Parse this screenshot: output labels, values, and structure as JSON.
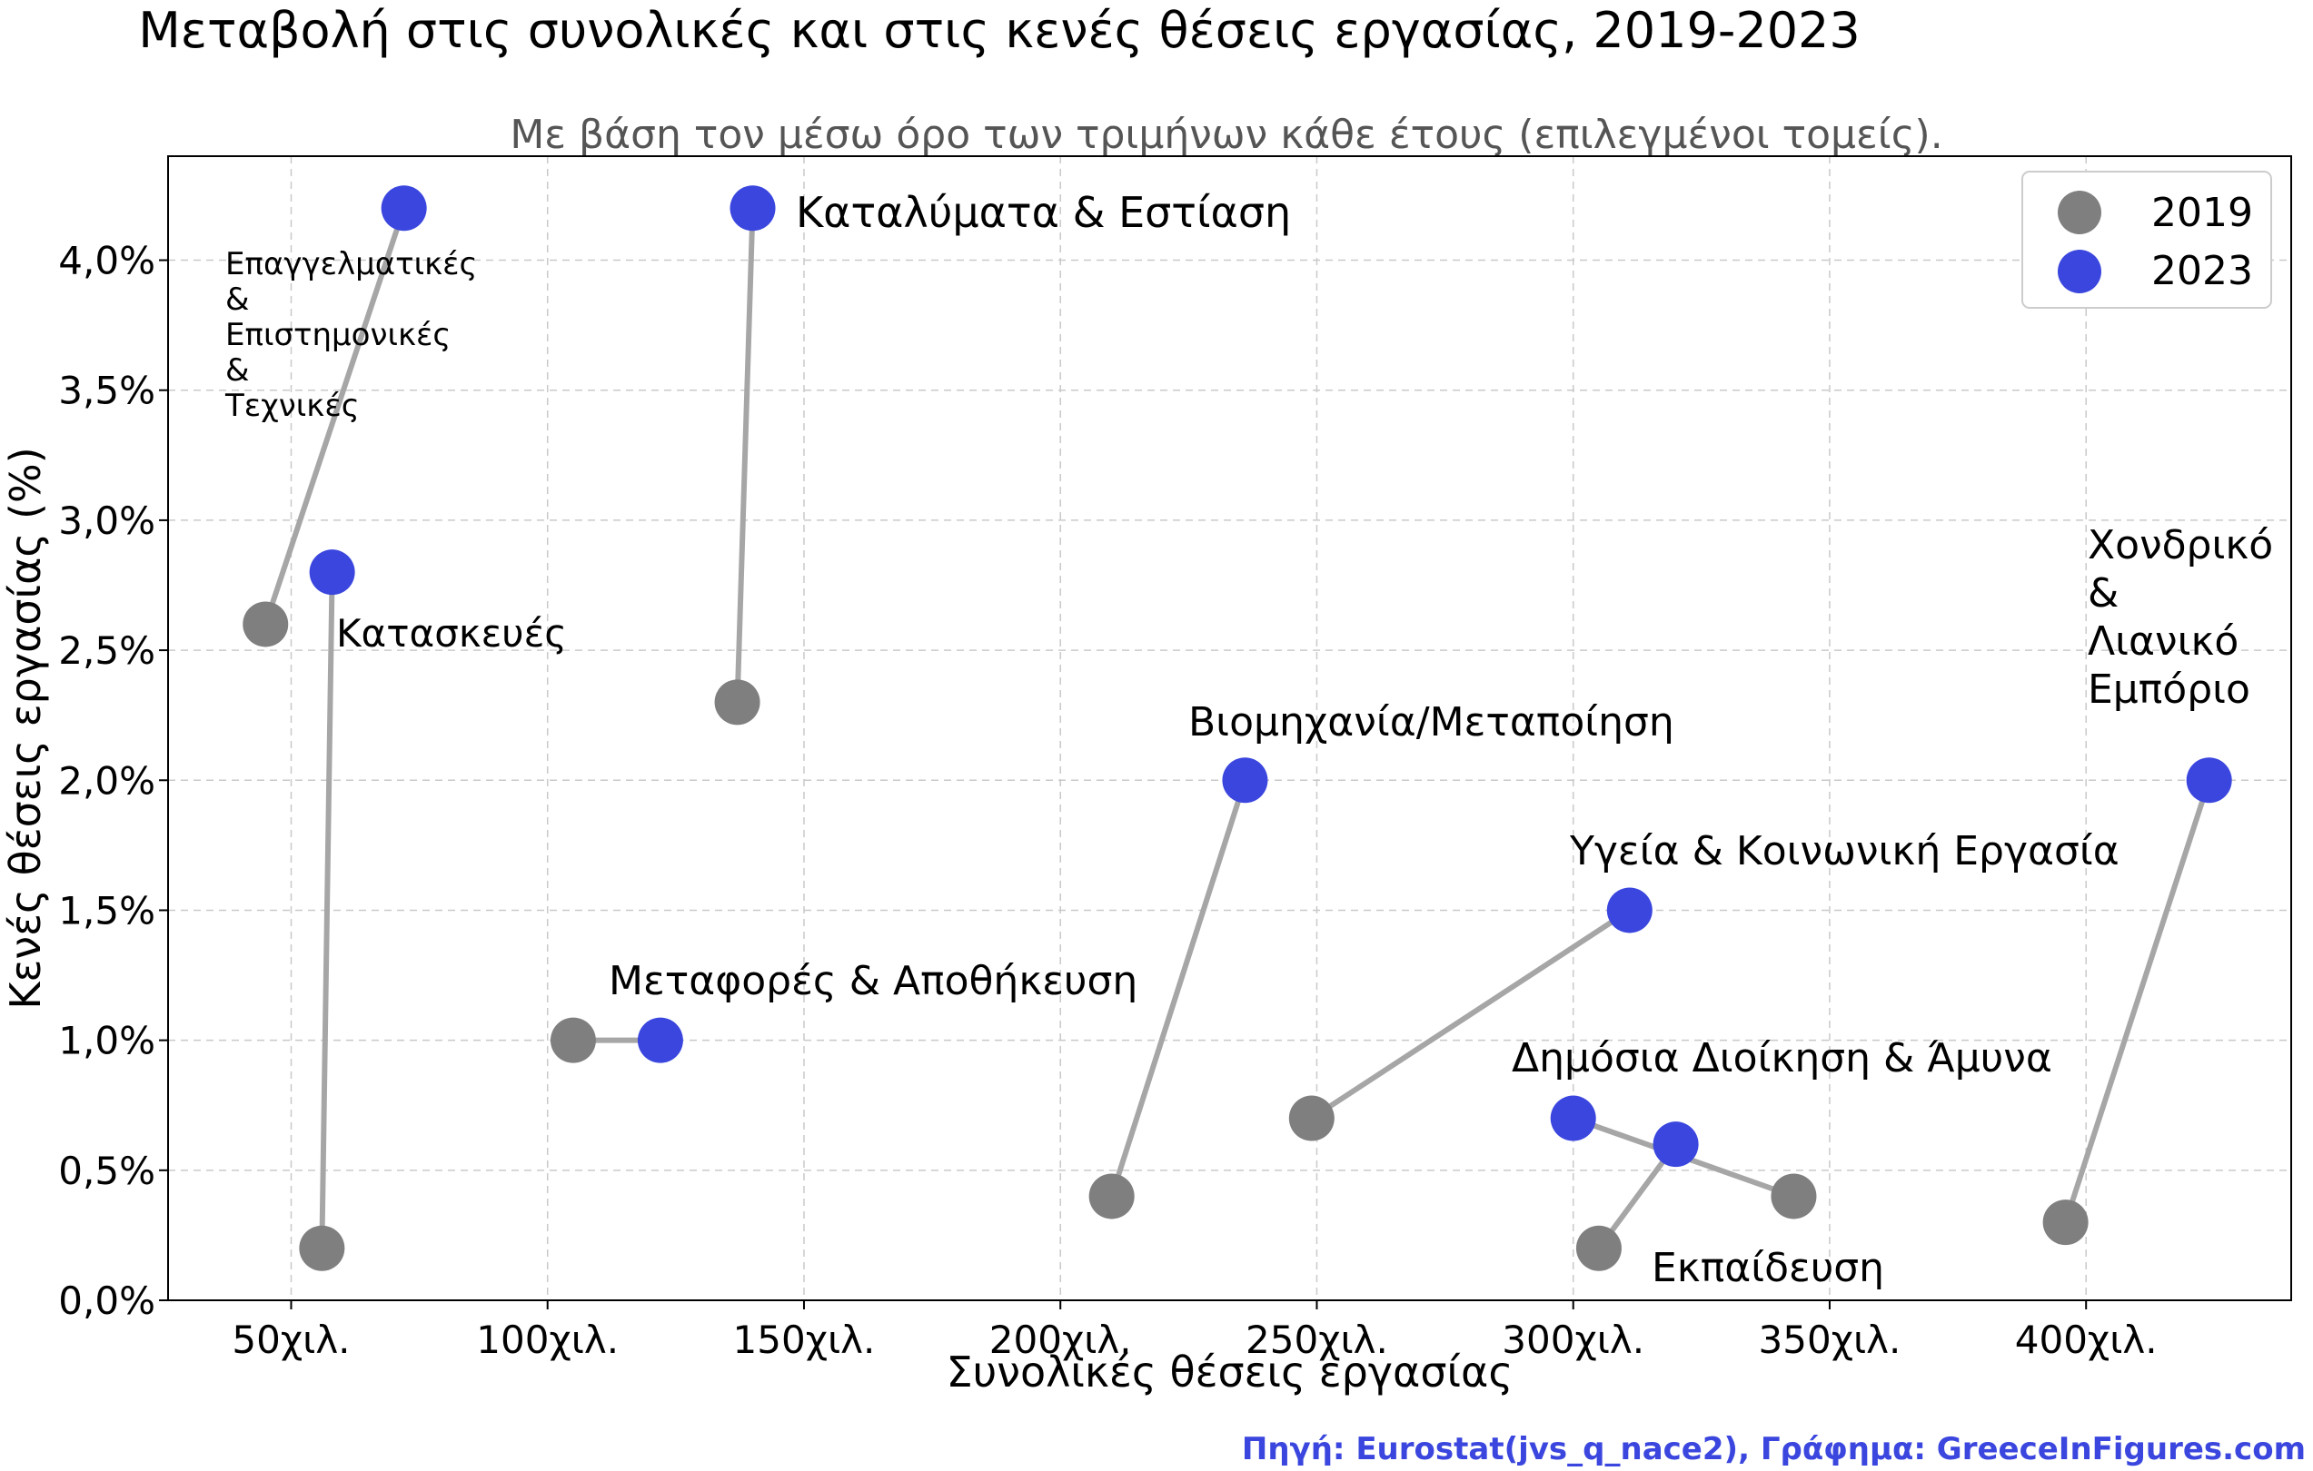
{
  "chart_data": {
    "type": "scatter",
    "title": "Μεταβολή στις συνολικές και στις κενές θέσεις εργασίας, 2019-2023",
    "subtitle": "Με βάση τον μέσω όρο των τριμήνων κάθε έτους (επιλεγμένοι τομείς).",
    "xlabel": "Συνολικές θέσεις εργασίας",
    "ylabel": "Κενές θέσεις εργασίας (%)",
    "xlim": [
      26,
      440
    ],
    "ylim": [
      0,
      4.4
    ],
    "xticks": [
      {
        "value": 50,
        "label": "50χιλ."
      },
      {
        "value": 100,
        "label": "100χιλ."
      },
      {
        "value": 150,
        "label": "150χιλ."
      },
      {
        "value": 200,
        "label": "200χιλ."
      },
      {
        "value": 250,
        "label": "250χιλ."
      },
      {
        "value": 300,
        "label": "300χιλ."
      },
      {
        "value": 350,
        "label": "350χιλ."
      },
      {
        "value": 400,
        "label": "400χιλ."
      }
    ],
    "yticks": [
      {
        "value": 0.0,
        "label": "0,0%"
      },
      {
        "value": 0.5,
        "label": "0,5%"
      },
      {
        "value": 1.0,
        "label": "1,0%"
      },
      {
        "value": 1.5,
        "label": "1,5%"
      },
      {
        "value": 2.0,
        "label": "2,0%"
      },
      {
        "value": 2.5,
        "label": "2,5%"
      },
      {
        "value": 3.0,
        "label": "3,0%"
      },
      {
        "value": 3.5,
        "label": "3,5%"
      },
      {
        "value": 4.0,
        "label": "4,0%"
      }
    ],
    "grid": true,
    "legend_position": "top-right",
    "legend": [
      {
        "label": "2019",
        "color": "#7f7f7f"
      },
      {
        "label": "2023",
        "color": "#3a46de"
      }
    ],
    "arrow_color": "#a6a6a6",
    "sectors": [
      {
        "name": "Επαγγελματικές & Επιστημονικές & Τεχνικές",
        "label_lines": [
          "Επαγγελματικές",
          "&",
          "Επιστημονικές",
          "&",
          "Τεχνικές"
        ],
        "x2019": 45,
        "y2019": 2.6,
        "x2023": 72,
        "y2023": 4.2
      },
      {
        "name": "Κατασκευές",
        "label_lines": [
          "Κατασκευές"
        ],
        "x2019": 56,
        "y2019": 0.2,
        "x2023": 58,
        "y2023": 2.8
      },
      {
        "name": "Καταλύματα & Εστίαση",
        "label_lines": [
          "Καταλύματα & Εστίαση"
        ],
        "x2019": 137,
        "y2019": 2.3,
        "x2023": 140,
        "y2023": 4.2
      },
      {
        "name": "Μεταφορές & Αποθήκευση",
        "label_lines": [
          "Μεταφορές & Αποθήκευση"
        ],
        "x2019": 105,
        "y2019": 1.0,
        "x2023": 122,
        "y2023": 1.0
      },
      {
        "name": "Βιομηχανία/Μεταποίηση",
        "label_lines": [
          "Βιομηχανία/Μεταποίηση"
        ],
        "x2019": 210,
        "y2019": 0.4,
        "x2023": 236,
        "y2023": 2.0
      },
      {
        "name": "Υγεία & Κοινωνική Εργασία",
        "label_lines": [
          "Υγεία & Κοινωνική Εργασία"
        ],
        "x2019": 249,
        "y2019": 0.7,
        "x2023": 311,
        "y2023": 1.5
      },
      {
        "name": "Δημόσια Διοίκηση & Άμυνα",
        "label_lines": [
          "Δημόσια Διοίκηση & Άμυνα"
        ],
        "x2019": 343,
        "y2019": 0.4,
        "x2023": 300,
        "y2023": 0.7
      },
      {
        "name": "Εκπαίδευση",
        "label_lines": [
          "Εκπαίδευση"
        ],
        "x2019": 305,
        "y2019": 0.2,
        "x2023": 320,
        "y2023": 0.6
      },
      {
        "name": "Χονδρικό & Λιανικό Εμπόριο",
        "label_lines": [
          "Χονδρικό",
          "&",
          "Λιανικό",
          "Εμπόριο"
        ],
        "x2019": 396,
        "y2019": 0.3,
        "x2023": 424,
        "y2023": 2.0
      }
    ]
  },
  "source": {
    "text": "Πηγή: Eurostat(jvs_q_nace2), Γράφημα: GreeceInFigures.com",
    "color": "#3a46de"
  }
}
